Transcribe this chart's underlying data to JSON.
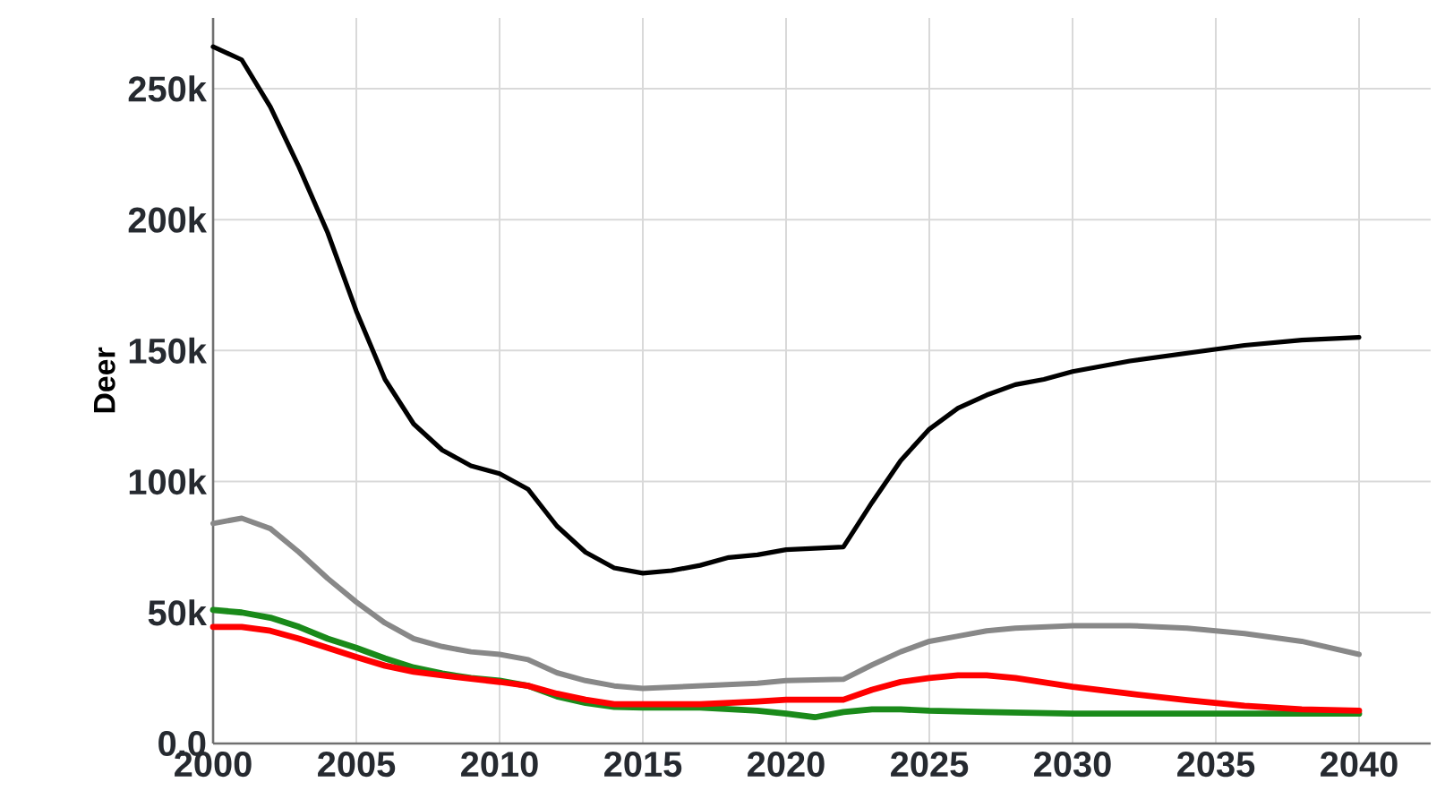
{
  "chart_data": {
    "type": "line",
    "ylabel": "Deer",
    "xlim": [
      2000,
      2042.5
    ],
    "ylim": [
      0,
      277000
    ],
    "xticks": [
      2000,
      2005,
      2010,
      2015,
      2020,
      2025,
      2030,
      2035,
      2040
    ],
    "yticks": [
      {
        "value": 0,
        "label": "0.0"
      },
      {
        "value": 50000,
        "label": "50k"
      },
      {
        "value": 100000,
        "label": "100k"
      },
      {
        "value": 150000,
        "label": "150k"
      },
      {
        "value": 200000,
        "label": "200k"
      },
      {
        "value": 250000,
        "label": "250k"
      }
    ],
    "grid": true,
    "line_style": "solid",
    "series": [
      {
        "color": "#000000",
        "x": [
          2000,
          2001,
          2002,
          2003,
          2004,
          2005,
          2006,
          2007,
          2008,
          2009,
          2010,
          2011,
          2012,
          2013,
          2014,
          2015,
          2016,
          2017,
          2018,
          2019,
          2020,
          2021,
          2022,
          2023,
          2024,
          2025,
          2026,
          2027,
          2028,
          2029,
          2030,
          2032,
          2034,
          2036,
          2038,
          2040
        ],
        "values": [
          266000,
          261000,
          243000,
          220000,
          195000,
          165000,
          139000,
          122000,
          112000,
          106000,
          103000,
          97000,
          83000,
          73000,
          67000,
          65000,
          66000,
          68000,
          71000,
          72000,
          74000,
          74500,
          75000,
          92000,
          108000,
          120000,
          128000,
          133000,
          137000,
          139000,
          142000,
          146000,
          149000,
          152000,
          154000,
          155000
        ]
      },
      {
        "color": "#888888",
        "x": [
          2000,
          2001,
          2002,
          2003,
          2004,
          2005,
          2006,
          2007,
          2008,
          2009,
          2010,
          2011,
          2012,
          2013,
          2014,
          2015,
          2017,
          2019,
          2020,
          2022,
          2023,
          2024,
          2025,
          2026,
          2027,
          2028,
          2030,
          2032,
          2034,
          2036,
          2038,
          2040
        ],
        "values": [
          84000,
          86000,
          82000,
          73000,
          63000,
          54000,
          46000,
          40000,
          37000,
          35000,
          34000,
          32000,
          27000,
          24000,
          22000,
          21000,
          22000,
          23000,
          24000,
          24500,
          30000,
          35000,
          39000,
          41000,
          43000,
          44000,
          45000,
          45000,
          44000,
          42000,
          39000,
          34000
        ]
      },
      {
        "color": "#1a8a1a",
        "x": [
          2000,
          2001,
          2002,
          2003,
          2004,
          2005,
          2006,
          2007,
          2008,
          2009,
          2010,
          2011,
          2012,
          2013,
          2014,
          2015,
          2017,
          2019,
          2020,
          2021,
          2022,
          2023,
          2024,
          2025,
          2027,
          2030,
          2035,
          2040
        ],
        "values": [
          51000,
          50000,
          48000,
          44500,
          40000,
          36500,
          32500,
          29000,
          26700,
          25000,
          24000,
          22000,
          18000,
          15500,
          14000,
          13700,
          13700,
          12500,
          11400,
          10000,
          12000,
          13000,
          13000,
          12500,
          12000,
          11400,
          11400,
          11400
        ]
      },
      {
        "color": "#ff0000",
        "x": [
          2000,
          2001,
          2002,
          2003,
          2004,
          2005,
          2006,
          2007,
          2008,
          2009,
          2010,
          2011,
          2012,
          2013,
          2014,
          2015,
          2017,
          2019,
          2020,
          2022,
          2023,
          2024,
          2025,
          2026,
          2027,
          2028,
          2030,
          2032,
          2034,
          2036,
          2038,
          2040
        ],
        "values": [
          44500,
          44500,
          43000,
          40000,
          36500,
          33000,
          29700,
          27400,
          26000,
          24700,
          23500,
          22000,
          19000,
          16700,
          15000,
          15000,
          15000,
          16000,
          16700,
          16700,
          20500,
          23500,
          25000,
          26000,
          26000,
          25000,
          21700,
          19000,
          16500,
          14400,
          13000,
          12500
        ]
      }
    ]
  }
}
